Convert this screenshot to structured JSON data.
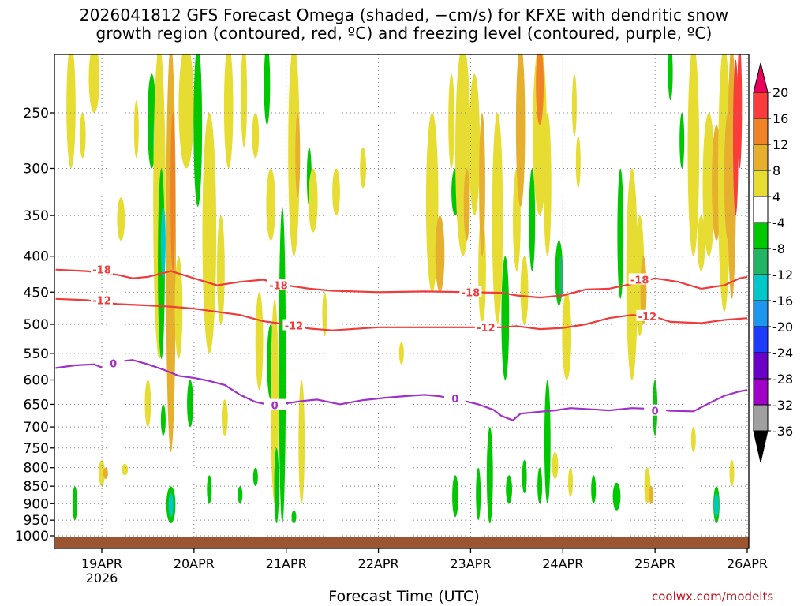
{
  "chart_data": {
    "type": "heatmap",
    "title_line1": "2026041812 GFS Forecast Omega (shaded, −cm/s) for KFXE with dendritic snow",
    "title_line2": "growth region (contoured, red, ºC) and freezing level (contoured, purple, ºC)",
    "xlabel": "Forecast Time (UTC)",
    "credit": "coolwx.com/modelts",
    "x_ticks": [
      {
        "label": "19APR",
        "t": 12,
        "sub": "2026"
      },
      {
        "label": "20APR",
        "t": 36,
        "sub": ""
      },
      {
        "label": "21APR",
        "t": 60,
        "sub": ""
      },
      {
        "label": "22APR",
        "t": 84,
        "sub": ""
      },
      {
        "label": "23APR",
        "t": 108,
        "sub": ""
      },
      {
        "label": "24APR",
        "t": 132,
        "sub": ""
      },
      {
        "label": "25APR",
        "t": 156,
        "sub": ""
      },
      {
        "label": "26APR",
        "t": 180,
        "sub": ""
      }
    ],
    "x_range_hours": [
      0,
      180
    ],
    "y_ticks": [
      250,
      300,
      350,
      400,
      450,
      500,
      550,
      600,
      650,
      700,
      750,
      800,
      850,
      900,
      950,
      1000
    ],
    "y_range_hpa": [
      200,
      1013
    ],
    "colorbar": {
      "labels": [
        "20",
        "16",
        "12",
        "8",
        "4",
        "-4",
        "-8",
        "-12",
        "-16",
        "-20",
        "-24",
        "-28",
        "-32",
        "-36"
      ],
      "colors": [
        "#e8005c",
        "#fa3c3c",
        "#f08228",
        "#e6af2d",
        "#e6dc32",
        "#ffffff",
        "#00c800",
        "#20b464",
        "#00c8c8",
        "#1e96f0",
        "#1e3cff",
        "#6a00c8",
        "#a000c8",
        "#a0a0a0",
        "#000000"
      ]
    },
    "contours_dgz": [
      {
        "label": "-18",
        "color": "#ef3b3b",
        "points": [
          [
            0,
            418
          ],
          [
            8,
            420
          ],
          [
            16,
            425
          ],
          [
            20,
            430
          ],
          [
            24,
            428
          ],
          [
            30,
            420
          ],
          [
            36,
            430
          ],
          [
            42,
            440
          ],
          [
            48,
            435
          ],
          [
            54,
            432
          ],
          [
            60,
            440
          ],
          [
            66,
            445
          ],
          [
            72,
            448
          ],
          [
            84,
            450
          ],
          [
            96,
            449
          ],
          [
            108,
            450
          ],
          [
            116,
            451
          ],
          [
            120,
            455
          ],
          [
            126,
            458
          ],
          [
            132,
            455
          ],
          [
            138,
            446
          ],
          [
            144,
            445
          ],
          [
            150,
            438
          ],
          [
            156,
            430
          ],
          [
            162,
            435
          ],
          [
            168,
            445
          ],
          [
            174,
            440
          ],
          [
            178,
            430
          ],
          [
            180,
            428
          ]
        ],
        "label_at": [
          [
            12,
            418
          ],
          [
            58,
            440
          ],
          [
            108,
            450
          ],
          [
            152,
            432
          ]
        ]
      },
      {
        "label": "-12",
        "color": "#ef3b3b",
        "points": [
          [
            0,
            460
          ],
          [
            8,
            462
          ],
          [
            16,
            468
          ],
          [
            24,
            470
          ],
          [
            30,
            472
          ],
          [
            36,
            475
          ],
          [
            42,
            480
          ],
          [
            48,
            485
          ],
          [
            54,
            495
          ],
          [
            60,
            500
          ],
          [
            66,
            507
          ],
          [
            72,
            510
          ],
          [
            84,
            505
          ],
          [
            96,
            505
          ],
          [
            108,
            505
          ],
          [
            116,
            505
          ],
          [
            120,
            503
          ],
          [
            126,
            508
          ],
          [
            132,
            506
          ],
          [
            138,
            500
          ],
          [
            144,
            490
          ],
          [
            150,
            485
          ],
          [
            156,
            488
          ],
          [
            160,
            496
          ],
          [
            168,
            498
          ],
          [
            174,
            493
          ],
          [
            180,
            490
          ]
        ],
        "label_at": [
          [
            12,
            462
          ],
          [
            62,
            502
          ],
          [
            112,
            505
          ],
          [
            154,
            487
          ]
        ]
      },
      {
        "label": "0",
        "color": "#a030c8",
        "points": [
          [
            0,
            577
          ],
          [
            5,
            572
          ],
          [
            10,
            570
          ],
          [
            12,
            576
          ],
          [
            16,
            565
          ],
          [
            20,
            562
          ],
          [
            24,
            570
          ],
          [
            28,
            580
          ],
          [
            32,
            592
          ],
          [
            36,
            596
          ],
          [
            40,
            602
          ],
          [
            44,
            610
          ],
          [
            48,
            630
          ],
          [
            52,
            645
          ],
          [
            56,
            652
          ],
          [
            60,
            648
          ],
          [
            64,
            643
          ],
          [
            68,
            640
          ],
          [
            74,
            650
          ],
          [
            80,
            641
          ],
          [
            86,
            636
          ],
          [
            92,
            632
          ],
          [
            96,
            630
          ],
          [
            100,
            633
          ],
          [
            106,
            642
          ],
          [
            110,
            650
          ],
          [
            114,
            662
          ],
          [
            116,
            675
          ],
          [
            119,
            685
          ],
          [
            121,
            670
          ],
          [
            126,
            666
          ],
          [
            130,
            663
          ],
          [
            134,
            658
          ],
          [
            138,
            660
          ],
          [
            144,
            663
          ],
          [
            150,
            658
          ],
          [
            156,
            660
          ],
          [
            160,
            664
          ],
          [
            166,
            665
          ],
          [
            170,
            648
          ],
          [
            174,
            632
          ],
          [
            178,
            623
          ],
          [
            180,
            620
          ]
        ],
        "label_at": [
          [
            15,
            568
          ],
          [
            57,
            652
          ],
          [
            104,
            638
          ],
          [
            156,
            664
          ]
        ]
      }
    ]
  }
}
